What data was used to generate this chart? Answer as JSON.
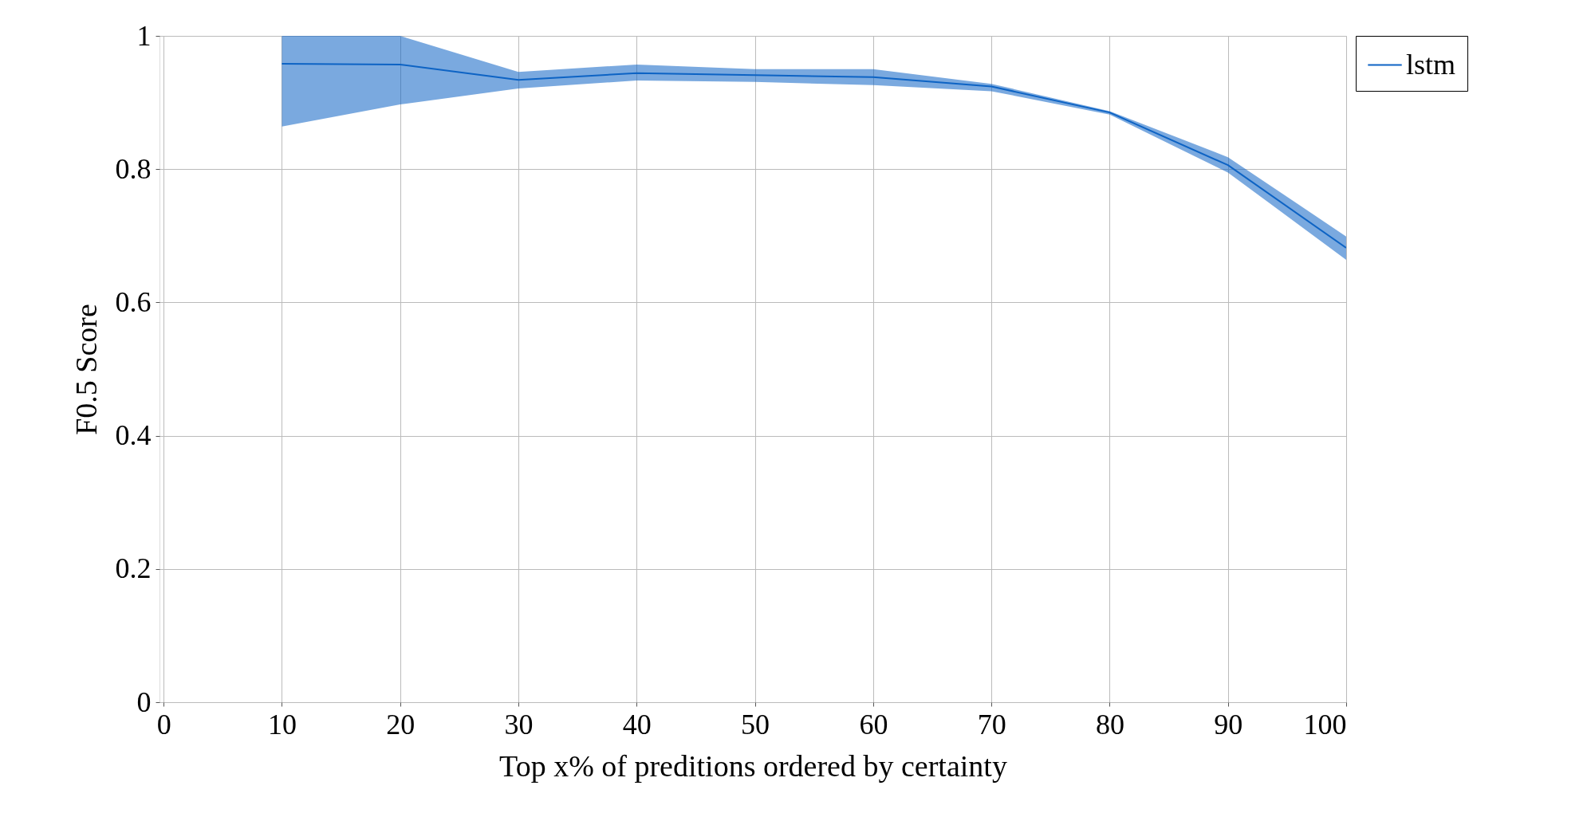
{
  "chart_data": {
    "type": "line",
    "xlabel": "Top x% of preditions ordered by certainty",
    "ylabel": "F0.5 Score",
    "x": [
      10,
      20,
      30,
      40,
      50,
      60,
      70,
      80,
      90,
      100
    ],
    "series": [
      {
        "name": "lstm",
        "color": "#0d63c4",
        "values": [
          0.958,
          0.957,
          0.934,
          0.944,
          0.941,
          0.938,
          0.924,
          0.885,
          0.806,
          0.682
        ],
        "lower": [
          0.864,
          0.897,
          0.921,
          0.933,
          0.931,
          0.926,
          0.917,
          0.882,
          0.795,
          0.664
        ],
        "upper": [
          1.0,
          1.0,
          0.946,
          0.957,
          0.95,
          0.95,
          0.928,
          0.887,
          0.818,
          0.699
        ]
      }
    ],
    "xlim": [
      -0.35,
      100
    ],
    "ylim": [
      0,
      1
    ],
    "xticks": [
      0,
      10,
      20,
      30,
      40,
      50,
      60,
      70,
      80,
      90,
      100
    ],
    "yticks": [
      0,
      0.2,
      0.4,
      0.6,
      0.8,
      1
    ],
    "grid": true,
    "legend": "right",
    "line_style": "solid",
    "marker": "none"
  }
}
